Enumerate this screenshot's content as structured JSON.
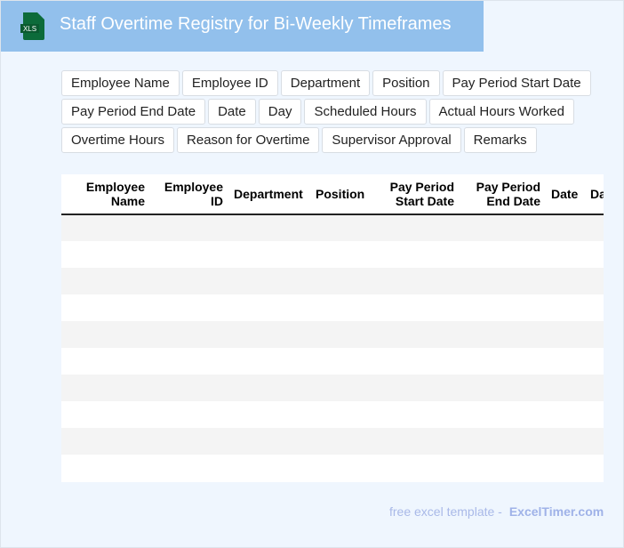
{
  "header": {
    "title": "Staff Overtime Registry for Bi-Weekly Timeframes",
    "icon": "xls-file-icon",
    "icon_label": "XLS",
    "color": "#92c0ec"
  },
  "fields": [
    "Employee Name",
    "Employee ID",
    "Department",
    "Position",
    "Pay Period Start Date",
    "Pay Period End Date",
    "Date",
    "Day",
    "Scheduled Hours",
    "Actual Hours Worked",
    "Overtime Hours",
    "Reason for Overtime",
    "Supervisor Approval",
    "Remarks"
  ],
  "table": {
    "columns": [
      [
        "Employee",
        "Name"
      ],
      [
        "Employee",
        "ID"
      ],
      [
        "Department"
      ],
      [
        "Position"
      ],
      [
        "Pay Period",
        "Start Date"
      ],
      [
        "Pay Period",
        "End Date"
      ],
      [
        "Date"
      ],
      [
        "Day"
      ]
    ],
    "row_count": 10
  },
  "footer": {
    "text": "free excel template -",
    "brand": "ExcelTimer.com"
  }
}
